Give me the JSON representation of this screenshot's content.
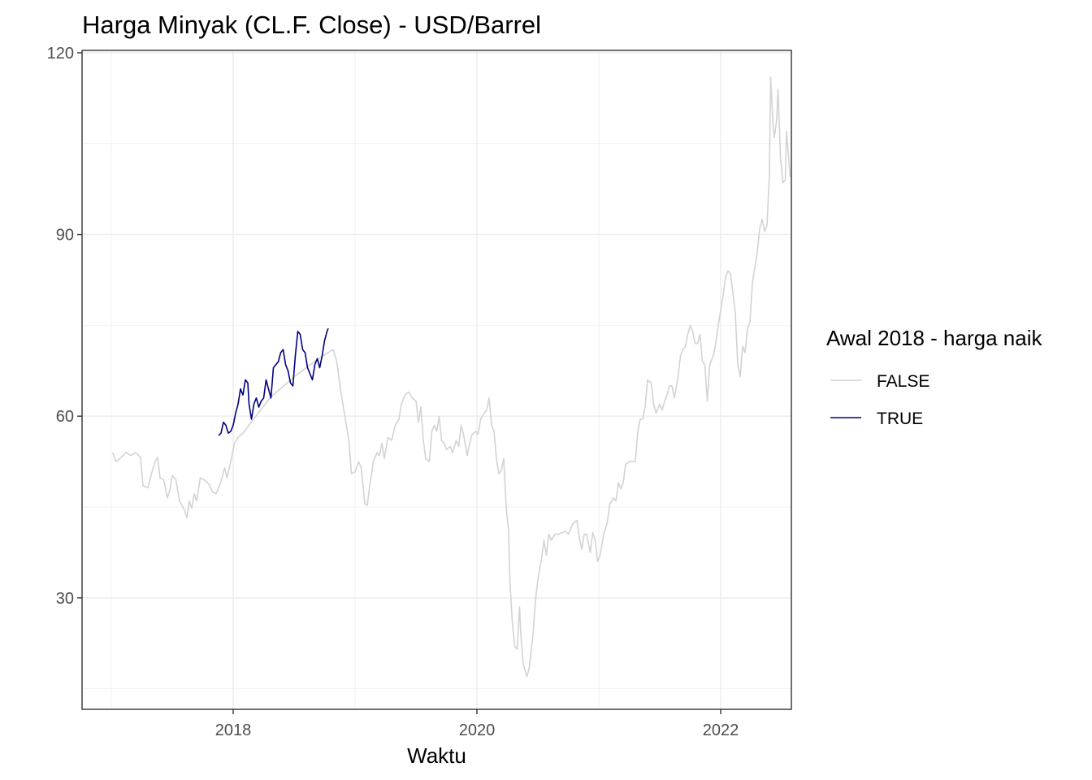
{
  "chart_data": {
    "type": "line",
    "title": "Harga Minyak (CL.F. Close) - USD/Barrel",
    "xlabel": "Waktu",
    "ylabel": "",
    "x_ticks": [
      "2018",
      "2020",
      "2022"
    ],
    "x_tick_values": [
      2018.0,
      2020.0,
      2022.0
    ],
    "y_ticks": [
      "30",
      "60",
      "90",
      "120"
    ],
    "y_tick_values": [
      30,
      60,
      90,
      120
    ],
    "xlim": [
      2016.76,
      2022.58
    ],
    "ylim": [
      11.6,
      120.4
    ],
    "grid": true,
    "legend": {
      "title": "Awal 2018 - harga naik",
      "position": "right"
    },
    "series": [
      {
        "name": "FALSE",
        "color": "#d3d3d3",
        "points": [
          [
            2017.01,
            54.0
          ],
          [
            2017.04,
            52.5
          ],
          [
            2017.08,
            53.2
          ],
          [
            2017.12,
            54.0
          ],
          [
            2017.16,
            53.5
          ],
          [
            2017.2,
            54.0
          ],
          [
            2017.24,
            53.2
          ],
          [
            2017.26,
            48.5
          ],
          [
            2017.3,
            48.2
          ],
          [
            2017.33,
            50.5
          ],
          [
            2017.36,
            52.5
          ],
          [
            2017.38,
            53.2
          ],
          [
            2017.4,
            49.8
          ],
          [
            2017.43,
            49.5
          ],
          [
            2017.46,
            46.5
          ],
          [
            2017.48,
            47.8
          ],
          [
            2017.5,
            50.2
          ],
          [
            2017.53,
            49.5
          ],
          [
            2017.56,
            46.0
          ],
          [
            2017.6,
            44.5
          ],
          [
            2017.62,
            43.2
          ],
          [
            2017.64,
            46.0
          ],
          [
            2017.66,
            44.8
          ],
          [
            2017.68,
            47.2
          ],
          [
            2017.7,
            46.0
          ],
          [
            2017.73,
            49.8
          ],
          [
            2017.76,
            49.5
          ],
          [
            2017.8,
            48.8
          ],
          [
            2017.83,
            47.5
          ],
          [
            2017.86,
            47.2
          ],
          [
            2017.9,
            49.2
          ],
          [
            2017.93,
            51.5
          ],
          [
            2017.95,
            49.8
          ],
          [
            2017.98,
            52.5
          ],
          [
            2018.01,
            55.5
          ],
          [
            2018.04,
            56.5
          ],
          [
            2018.08,
            57.2
          ],
          [
            2018.3,
            63.0
          ],
          [
            2018.5,
            66.5
          ],
          [
            2018.7,
            69.5
          ],
          [
            2018.82,
            71.0
          ],
          [
            2018.85,
            69.0
          ],
          [
            2018.88,
            64.5
          ],
          [
            2018.92,
            59.5
          ],
          [
            2018.95,
            56.0
          ],
          [
            2018.97,
            50.5
          ],
          [
            2019.0,
            50.8
          ],
          [
            2019.03,
            52.5
          ],
          [
            2019.05,
            51.5
          ],
          [
            2019.08,
            45.5
          ],
          [
            2019.1,
            45.3
          ],
          [
            2019.12,
            48.5
          ],
          [
            2019.15,
            52.5
          ],
          [
            2019.18,
            54.0
          ],
          [
            2019.2,
            53.5
          ],
          [
            2019.22,
            55.5
          ],
          [
            2019.24,
            53.0
          ],
          [
            2019.27,
            56.5
          ],
          [
            2019.3,
            56.0
          ],
          [
            2019.33,
            58.5
          ],
          [
            2019.36,
            59.5
          ],
          [
            2019.38,
            62.0
          ],
          [
            2019.41,
            63.5
          ],
          [
            2019.44,
            64.0
          ],
          [
            2019.47,
            63.0
          ],
          [
            2019.5,
            62.5
          ],
          [
            2019.52,
            59.0
          ],
          [
            2019.54,
            61.5
          ],
          [
            2019.56,
            56.0
          ],
          [
            2019.58,
            53.0
          ],
          [
            2019.61,
            52.5
          ],
          [
            2019.63,
            57.5
          ],
          [
            2019.65,
            58.5
          ],
          [
            2019.67,
            57.5
          ],
          [
            2019.69,
            60.0
          ],
          [
            2019.71,
            56.0
          ],
          [
            2019.73,
            55.5
          ],
          [
            2019.75,
            54.5
          ],
          [
            2019.78,
            55.0
          ],
          [
            2019.8,
            54.0
          ],
          [
            2019.83,
            56.0
          ],
          [
            2019.85,
            55.0
          ],
          [
            2019.87,
            58.5
          ],
          [
            2019.89,
            57.0
          ],
          [
            2019.92,
            53.5
          ],
          [
            2019.94,
            55.5
          ],
          [
            2019.96,
            57.0
          ],
          [
            2019.99,
            57.5
          ],
          [
            2020.01,
            57.0
          ],
          [
            2020.03,
            59.5
          ],
          [
            2020.06,
            60.5
          ],
          [
            2020.08,
            61.0
          ],
          [
            2020.1,
            63.0
          ],
          [
            2020.12,
            58.5
          ],
          [
            2020.14,
            57.5
          ],
          [
            2020.16,
            53.0
          ],
          [
            2020.18,
            50.5
          ],
          [
            2020.2,
            51.0
          ],
          [
            2020.22,
            53.0
          ],
          [
            2020.24,
            45.0
          ],
          [
            2020.26,
            41.0
          ],
          [
            2020.27,
            33.0
          ],
          [
            2020.29,
            26.0
          ],
          [
            2020.31,
            22.0
          ],
          [
            2020.33,
            21.5
          ],
          [
            2020.35,
            28.5
          ],
          [
            2020.36,
            24.0
          ],
          [
            2020.38,
            19.0
          ],
          [
            2020.41,
            17.0
          ],
          [
            2020.43,
            18.5
          ],
          [
            2020.46,
            24.0
          ],
          [
            2020.48,
            29.5
          ],
          [
            2020.5,
            33.0
          ],
          [
            2020.53,
            36.5
          ],
          [
            2020.55,
            39.5
          ],
          [
            2020.57,
            37.0
          ],
          [
            2020.59,
            40.5
          ],
          [
            2020.61,
            39.5
          ],
          [
            2020.64,
            40.5
          ],
          [
            2020.67,
            40.5
          ],
          [
            2020.7,
            40.8
          ],
          [
            2020.73,
            41.0
          ],
          [
            2020.75,
            40.5
          ],
          [
            2020.78,
            42.0
          ],
          [
            2020.8,
            42.5
          ],
          [
            2020.82,
            42.8
          ],
          [
            2020.84,
            40.0
          ],
          [
            2020.86,
            38.0
          ],
          [
            2020.88,
            40.5
          ],
          [
            2020.9,
            40.5
          ],
          [
            2020.93,
            37.5
          ],
          [
            2020.95,
            40.8
          ],
          [
            2020.97,
            39.5
          ],
          [
            2020.99,
            36.0
          ],
          [
            2021.01,
            37.0
          ],
          [
            2021.04,
            40.5
          ],
          [
            2021.07,
            42.5
          ],
          [
            2021.09,
            45.5
          ],
          [
            2021.12,
            46.5
          ],
          [
            2021.14,
            46.0
          ],
          [
            2021.16,
            49.0
          ],
          [
            2021.18,
            48.0
          ],
          [
            2021.2,
            49.0
          ],
          [
            2021.22,
            52.0
          ],
          [
            2021.25,
            52.5
          ],
          [
            2021.28,
            52.5
          ],
          [
            2021.3,
            52.5
          ],
          [
            2021.32,
            57.5
          ],
          [
            2021.34,
            59.5
          ],
          [
            2021.36,
            59.5
          ],
          [
            2021.38,
            61.5
          ],
          [
            2021.4,
            66.0
          ],
          [
            2021.43,
            65.5
          ],
          [
            2021.45,
            62.0
          ],
          [
            2021.47,
            60.5
          ],
          [
            2021.5,
            62.0
          ],
          [
            2021.52,
            61.0
          ],
          [
            2021.54,
            62.5
          ],
          [
            2021.56,
            63.5
          ],
          [
            2021.58,
            65.0
          ],
          [
            2021.6,
            65.0
          ],
          [
            2021.62,
            63.0
          ],
          [
            2021.65,
            66.5
          ],
          [
            2021.67,
            70.0
          ],
          [
            2021.69,
            71.0
          ],
          [
            2021.71,
            71.5
          ],
          [
            2021.73,
            73.5
          ],
          [
            2021.75,
            75.0
          ],
          [
            2021.77,
            74.0
          ],
          [
            2021.79,
            72.0
          ],
          [
            2021.81,
            72.0
          ],
          [
            2021.83,
            73.5
          ],
          [
            2021.85,
            69.0
          ],
          [
            2021.87,
            68.5
          ],
          [
            2021.89,
            62.5
          ],
          [
            2021.91,
            68.5
          ],
          [
            2021.94,
            70.0
          ],
          [
            2021.96,
            72.0
          ],
          [
            2021.98,
            75.0
          ],
          [
            2022.0,
            77.5
          ],
          [
            2022.02,
            80.0
          ],
          [
            2022.04,
            83.0
          ],
          [
            2022.06,
            84.0
          ],
          [
            2022.08,
            83.5
          ],
          [
            2022.1,
            80.5
          ],
          [
            2022.12,
            77.0
          ],
          [
            2022.14,
            68.5
          ],
          [
            2022.16,
            66.5
          ],
          [
            2022.18,
            71.5
          ],
          [
            2022.2,
            70.5
          ],
          [
            2022.22,
            74.5
          ],
          [
            2022.24,
            75.5
          ],
          [
            2022.26,
            82.0
          ],
          [
            2022.28,
            84.5
          ],
          [
            2022.3,
            87.0
          ],
          [
            2022.32,
            91.0
          ],
          [
            2022.34,
            92.5
          ],
          [
            2022.36,
            90.5
          ],
          [
            2022.38,
            91.5
          ],
          [
            2022.4,
            100.0
          ],
          [
            2022.41,
            116.0
          ],
          [
            2022.43,
            108.0
          ],
          [
            2022.44,
            106.0
          ],
          [
            2022.46,
            109.0
          ],
          [
            2022.47,
            114.0
          ],
          [
            2022.49,
            103.0
          ],
          [
            2022.51,
            98.5
          ],
          [
            2022.53,
            99.0
          ],
          [
            2022.54,
            107.0
          ],
          [
            2022.56,
            102.0
          ],
          [
            2022.57,
            99.5
          ]
        ]
      },
      {
        "name": "TRUE",
        "color": "#000080",
        "points": [
          [
            2017.88,
            56.8
          ],
          [
            2017.9,
            57.2
          ],
          [
            2017.92,
            59.0
          ],
          [
            2017.94,
            58.5
          ],
          [
            2017.96,
            57.2
          ],
          [
            2017.98,
            57.5
          ],
          [
            2018.0,
            58.5
          ],
          [
            2018.02,
            60.5
          ],
          [
            2018.04,
            62.0
          ],
          [
            2018.06,
            64.5
          ],
          [
            2018.08,
            63.5
          ],
          [
            2018.1,
            66.0
          ],
          [
            2018.12,
            65.5
          ],
          [
            2018.13,
            62.0
          ],
          [
            2018.15,
            59.5
          ],
          [
            2018.17,
            62.0
          ],
          [
            2018.19,
            63.0
          ],
          [
            2018.21,
            61.5
          ],
          [
            2018.23,
            62.5
          ],
          [
            2018.25,
            63.0
          ],
          [
            2018.27,
            66.0
          ],
          [
            2018.29,
            64.5
          ],
          [
            2018.31,
            63.0
          ],
          [
            2018.33,
            68.0
          ],
          [
            2018.35,
            68.5
          ],
          [
            2018.37,
            69.0
          ],
          [
            2018.39,
            70.5
          ],
          [
            2018.41,
            71.0
          ],
          [
            2018.43,
            68.5
          ],
          [
            2018.45,
            67.5
          ],
          [
            2018.47,
            65.5
          ],
          [
            2018.49,
            65.0
          ],
          [
            2018.51,
            70.0
          ],
          [
            2018.53,
            74.0
          ],
          [
            2018.55,
            73.5
          ],
          [
            2018.57,
            71.0
          ],
          [
            2018.59,
            70.5
          ],
          [
            2018.61,
            68.0
          ],
          [
            2018.63,
            67.0
          ],
          [
            2018.65,
            66.0
          ],
          [
            2018.67,
            68.5
          ],
          [
            2018.69,
            69.5
          ],
          [
            2018.71,
            68.0
          ],
          [
            2018.73,
            70.0
          ],
          [
            2018.75,
            72.5
          ],
          [
            2018.77,
            74.0
          ],
          [
            2018.78,
            74.5
          ]
        ]
      }
    ]
  }
}
